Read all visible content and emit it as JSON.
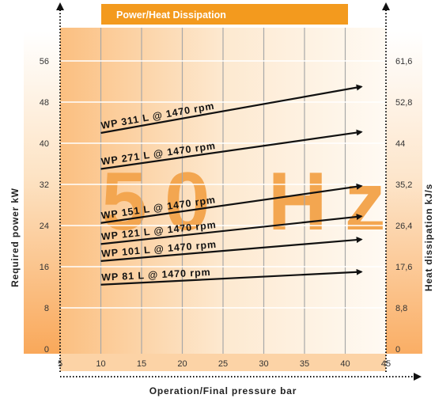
{
  "banner": {
    "title": "Power/Heat Dissipation",
    "color": "#f39a1e"
  },
  "watermark": "50 Hz",
  "axes": {
    "xlabel": "Operation/Final pressure bar",
    "ylabel_left": "Required power kW",
    "ylabel_right": "Heat dissipation kJ/s"
  },
  "chart_data": {
    "type": "line",
    "xlim": [
      5,
      45
    ],
    "ylim": [
      0,
      60
    ],
    "x_ticks": [
      5,
      10,
      15,
      20,
      25,
      30,
      35,
      40,
      45
    ],
    "y_ticks_left": [
      0,
      8,
      16,
      24,
      32,
      40,
      48,
      56
    ],
    "y_ticks_right": [
      "0",
      "8,8",
      "17,6",
      "26,4",
      "35,2",
      "44",
      "52,8",
      "61,6"
    ],
    "grid": true,
    "series": [
      {
        "name": "WP 311 L @ 1470 rpm",
        "x": [
          10,
          42
        ],
        "y": [
          42,
          51
        ]
      },
      {
        "name": "WP 271 L @ 1470 rpm",
        "x": [
          10,
          42
        ],
        "y": [
          35,
          42.2
        ]
      },
      {
        "name": "WP 151 L @ 1470 rpm",
        "x": [
          10,
          42
        ],
        "y": [
          24.5,
          31.7
        ]
      },
      {
        "name": "WP 121 L @ 1470 rpm",
        "x": [
          10,
          42
        ],
        "y": [
          20.4,
          25.8
        ]
      },
      {
        "name": "WP 101 L @ 1470 rpm",
        "x": [
          10,
          42
        ],
        "y": [
          17.1,
          21.3
        ]
      },
      {
        "name": "WP 81 L @ 1470 rpm",
        "x": [
          10,
          42
        ],
        "y": [
          12.5,
          15
        ]
      }
    ]
  }
}
